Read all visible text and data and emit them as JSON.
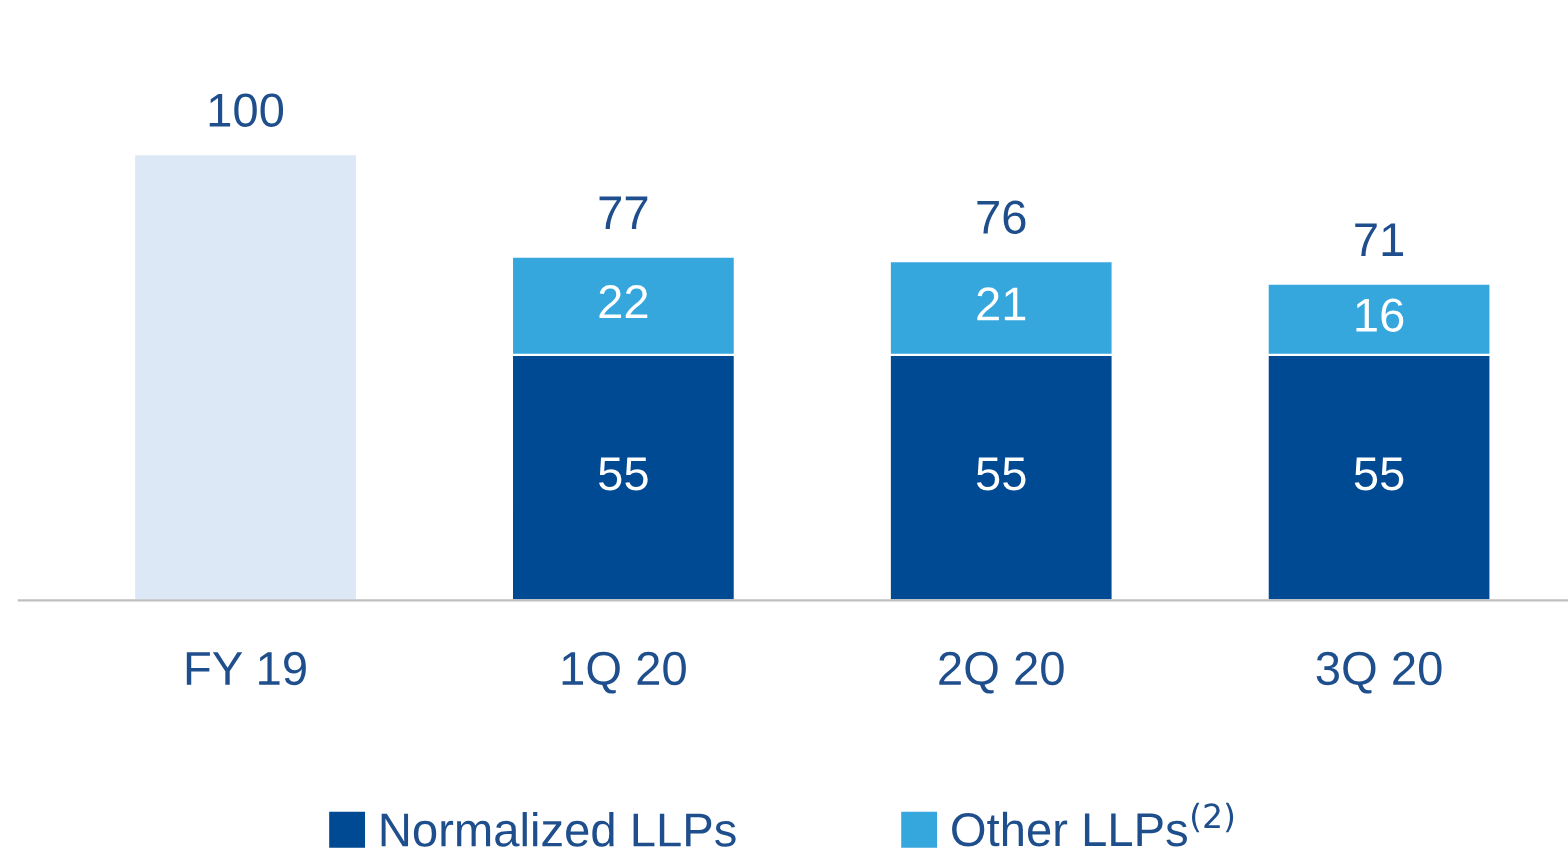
{
  "chart_data": {
    "type": "bar",
    "stacked": true,
    "categories": [
      "FY 19",
      "1Q 20",
      "2Q 20",
      "3Q 20"
    ],
    "series": [
      {
        "color": "#dce8f5",
        "values": [
          100,
          null,
          null,
          null
        ],
        "value_labels": [
          null,
          null,
          null,
          null
        ]
      },
      {
        "name": "Normalized LLPs",
        "color": "#004a93",
        "values": [
          null,
          55,
          55,
          55
        ],
        "value_labels": [
          null,
          "55",
          "55",
          "55"
        ]
      },
      {
        "name": "Other LLPs$^{(2)}$",
        "color": "#35a7dd",
        "values": [
          null,
          22,
          21,
          16
        ],
        "value_labels": [
          null,
          "22",
          "21",
          "16"
        ]
      }
    ],
    "totals": [
      "100",
      "77",
      "76",
      "71"
    ],
    "tick_labels": "x",
    "grid": false,
    "legend": "bottom"
  }
}
